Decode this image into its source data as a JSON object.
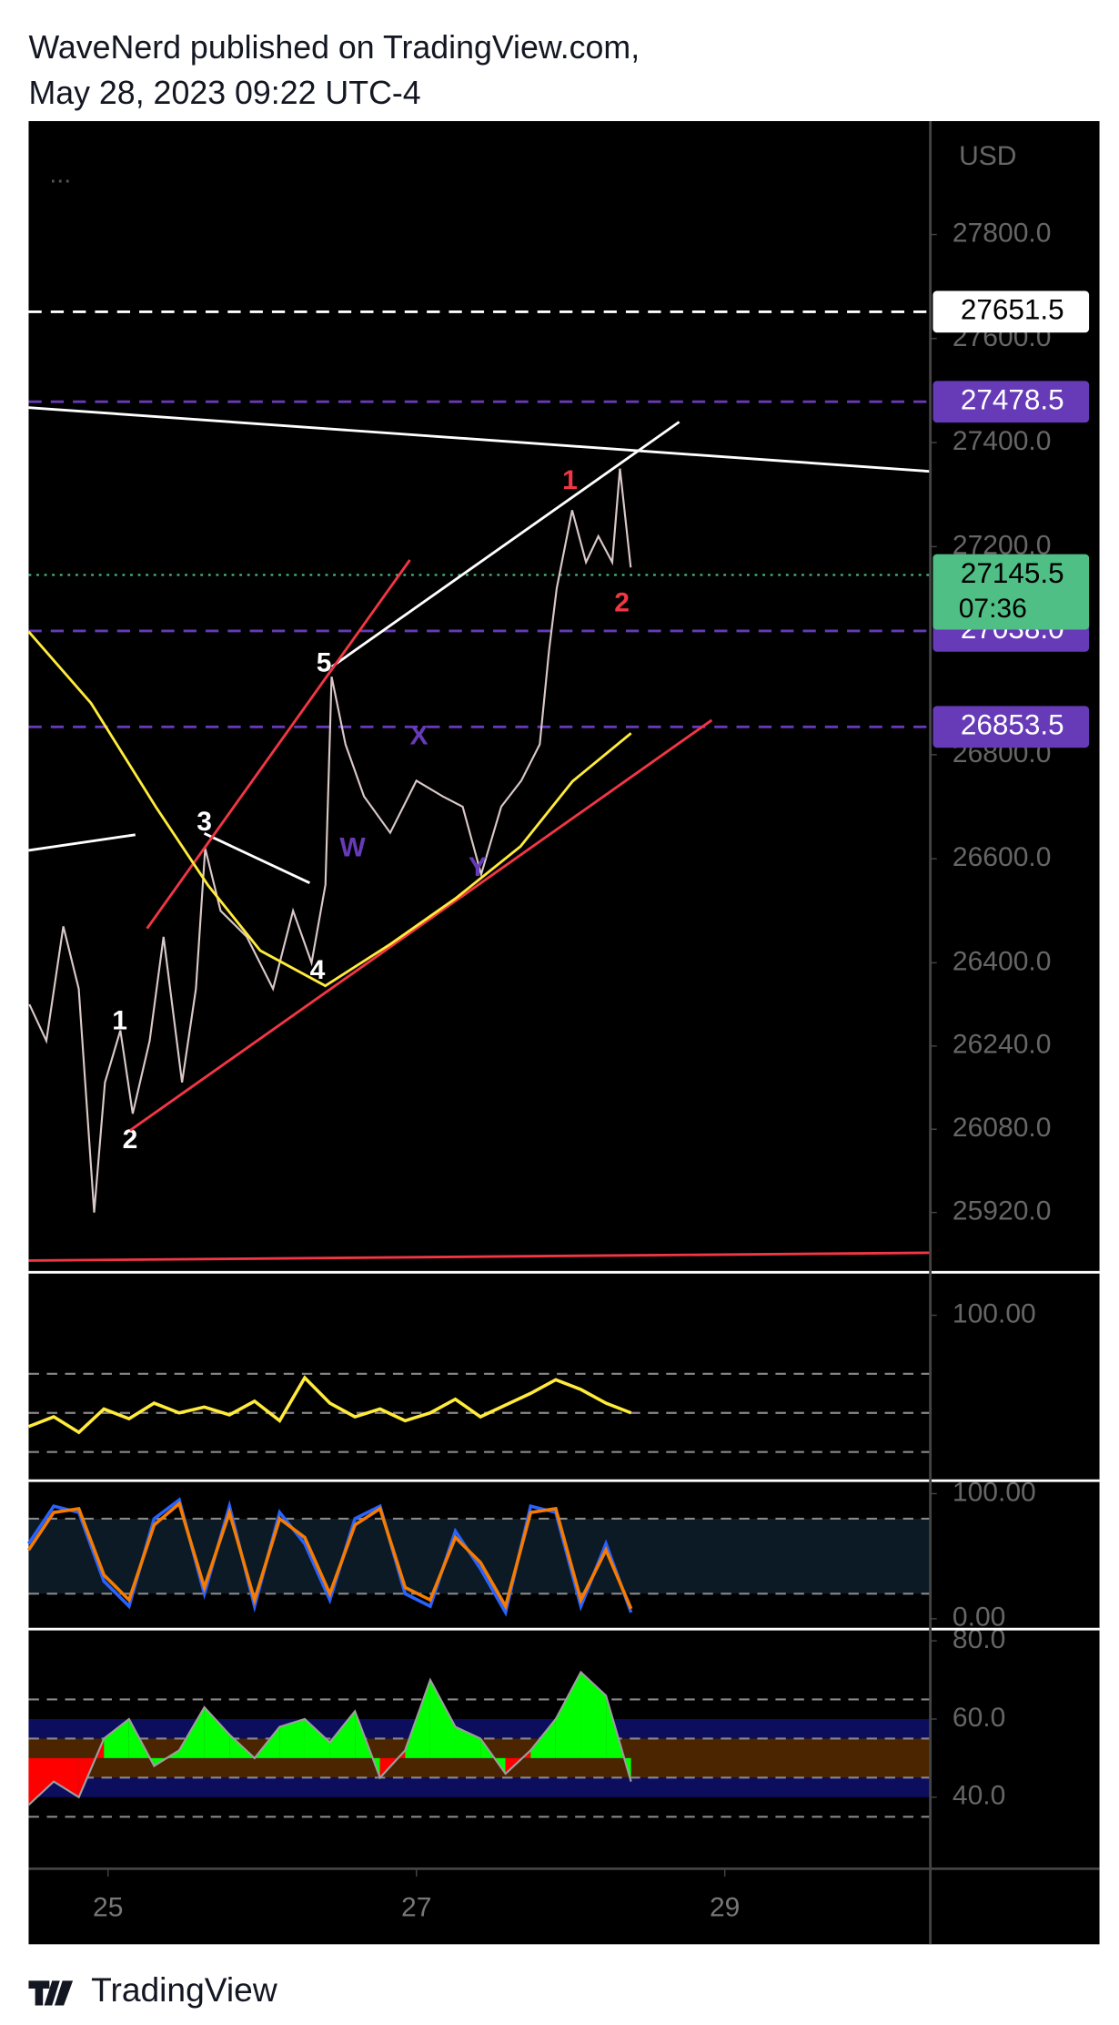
{
  "header": {
    "line1": "WaveNerd published on TradingView.com,",
    "line2": "May 28, 2023 09:22 UTC-4"
  },
  "footer": {
    "brand": "TradingView"
  },
  "chart_data": [
    {
      "type": "line",
      "currency": "USD",
      "menu": "...",
      "color": "#d9c8c8",
      "x": [
        24.49,
        24.6,
        24.71,
        24.81,
        24.91,
        24.98,
        25.08,
        25.16,
        25.27,
        25.36,
        25.48,
        25.57,
        25.63,
        25.73,
        25.9,
        26.07,
        26.2,
        26.32,
        26.41,
        26.45,
        26.54,
        26.66,
        26.83,
        27.0,
        27.17,
        27.3,
        27.42,
        27.55,
        27.68,
        27.8,
        27.86,
        27.91,
        28.01,
        28.1,
        28.18,
        28.27,
        28.32,
        28.39
      ],
      "values": [
        26320,
        26250,
        26470,
        26350,
        25920,
        26170,
        26270,
        26110,
        26250,
        26450,
        26170,
        26350,
        26620,
        26500,
        26450,
        26350,
        26500,
        26400,
        26550,
        26950,
        26820,
        26720,
        26650,
        26750,
        26720,
        26700,
        26570,
        26700,
        26750,
        26820,
        27000,
        27120,
        27270,
        27170,
        27220,
        27170,
        27350,
        27160
      ],
      "xlim": [
        24.485,
        30.333
      ],
      "xticks": [
        25,
        27,
        29
      ],
      "ylim": [
        25805,
        28018
      ],
      "yticks": [
        {
          "value": 27800,
          "label": "27800.0"
        },
        {
          "value": 27600,
          "label": "27600.0"
        },
        {
          "value": 27400,
          "label": "27400.0"
        },
        {
          "value": 27200,
          "label": "27200.0"
        },
        {
          "value": 26800,
          "label": "26800.0"
        },
        {
          "value": 26600,
          "label": "26600.0"
        },
        {
          "value": 26400,
          "label": "26400.0"
        },
        {
          "value": 26240,
          "label": "26240.0"
        },
        {
          "value": 26080,
          "label": "26080.0"
        },
        {
          "value": 25920,
          "label": "25920.0"
        }
      ],
      "price_lines": [
        {
          "value": 27651.5,
          "label": "27651.5",
          "color": "#ffffff",
          "text_color": "#000000"
        },
        {
          "value": 27478.5,
          "label": "27478.5",
          "color": "#673ab7",
          "text_color": "#ffffff"
        },
        {
          "value": 27038,
          "label": "27038.0",
          "color": "#673ab7",
          "text_color": "#ffffff"
        },
        {
          "value": 26853.5,
          "label": "26853.5",
          "color": "#673ab7",
          "text_color": "#ffffff"
        }
      ],
      "last_price": {
        "value": 27145.5,
        "label": "27145.5",
        "countdown": "07:36",
        "color": "#4fbf85"
      },
      "annotations": [
        {
          "text": "1",
          "color": "#ffffff"
        },
        {
          "text": "2",
          "color": "#ffffff"
        },
        {
          "text": "3",
          "color": "#ffffff"
        },
        {
          "text": "4",
          "color": "#ffffff"
        },
        {
          "text": "5",
          "color": "#ffffff"
        },
        {
          "text": "W",
          "color": "#673ab7"
        },
        {
          "text": "X",
          "color": "#673ab7"
        },
        {
          "text": "Y",
          "color": "#673ab7"
        },
        {
          "text": "1",
          "color": "#f23645"
        },
        {
          "text": "2",
          "color": "#f23645"
        }
      ]
    },
    {
      "type": "line",
      "color": "#ffeb3b",
      "values": [
        43,
        48,
        40,
        52,
        47,
        55,
        50,
        53,
        49,
        56,
        46,
        68,
        55,
        48,
        52,
        46,
        50,
        57,
        48,
        54,
        60,
        67,
        62,
        55,
        50
      ],
      "ylim": [
        15.3,
        122
      ],
      "yticks": [
        {
          "value": 100,
          "label": "100.00"
        }
      ],
      "levels": [
        70,
        50,
        30
      ]
    },
    {
      "type": "line",
      "ylim": [
        -8.3,
        110.4
      ],
      "yticks": [
        {
          "value": 100,
          "label": "100.00"
        },
        {
          "value": 0,
          "label": "0.00"
        }
      ],
      "levels": [
        80,
        20
      ],
      "band": [
        20,
        80
      ],
      "band_color": "#0b1a24",
      "series": [
        {
          "color": "#2962ff",
          "values": [
            60,
            90,
            85,
            30,
            10,
            80,
            95,
            20,
            90,
            10,
            85,
            60,
            15,
            80,
            90,
            20,
            10,
            70,
            40,
            5,
            90,
            85,
            10,
            60,
            5
          ]
        },
        {
          "color": "#f57c00",
          "values": [
            55,
            85,
            88,
            35,
            15,
            75,
            92,
            25,
            85,
            15,
            80,
            65,
            20,
            75,
            88,
            25,
            15,
            65,
            45,
            10,
            85,
            88,
            15,
            55,
            8
          ]
        }
      ]
    },
    {
      "type": "area",
      "ylim": [
        21.7,
        83
      ],
      "yticks": [
        {
          "value": 80,
          "label": "80.0"
        },
        {
          "value": 60,
          "label": "60.0"
        },
        {
          "value": 40,
          "label": "40.0"
        }
      ],
      "levels": [
        65,
        55,
        45,
        35
      ],
      "baseline": 50,
      "up_color": "#00ff00",
      "down_color": "#ff0000",
      "bands": [
        {
          "range": [
            55,
            60
          ],
          "color": "#0d0d5e"
        },
        {
          "range": [
            45,
            55
          ],
          "color": "#4a2500"
        },
        {
          "range": [
            40,
            45
          ],
          "color": "#0d0d5e"
        }
      ],
      "values": [
        38,
        44,
        40,
        55,
        60,
        48,
        52,
        63,
        56,
        50,
        58,
        60,
        54,
        62,
        45,
        52,
        70,
        58,
        55,
        46,
        52,
        60,
        72,
        66,
        44
      ]
    }
  ]
}
